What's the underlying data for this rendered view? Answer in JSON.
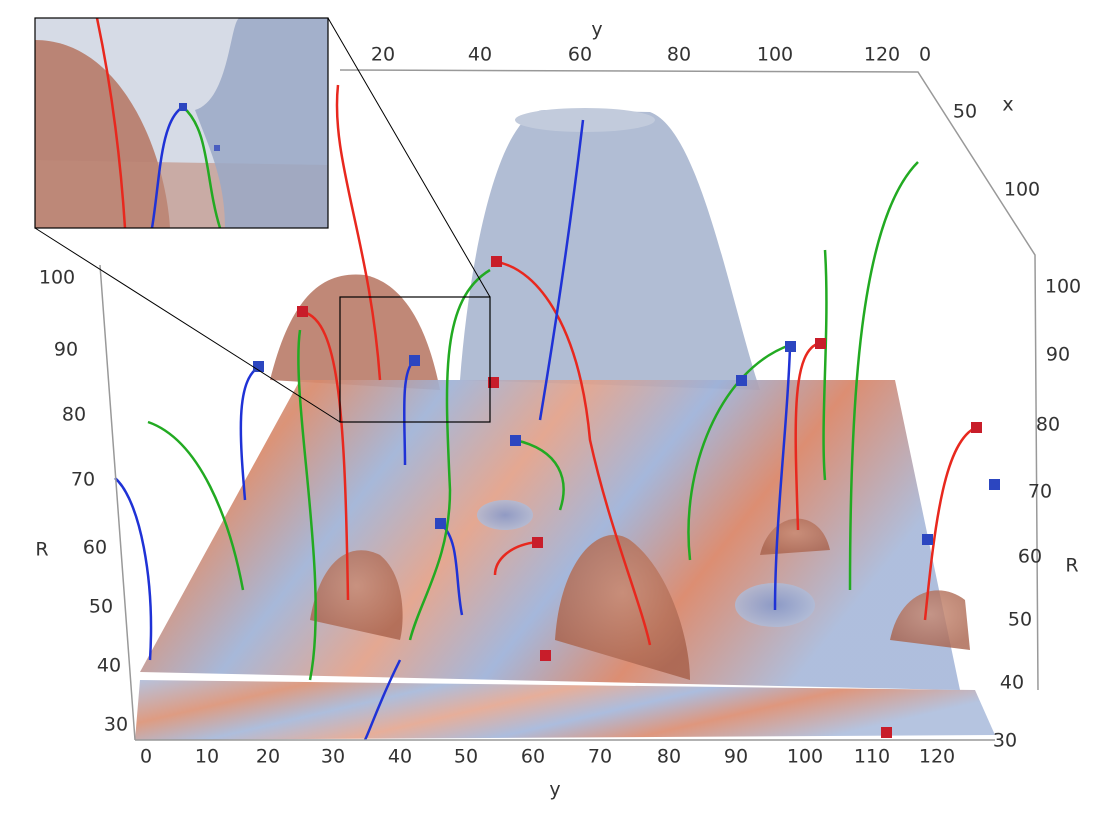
{
  "axes": {
    "top_y": {
      "label": "y",
      "ticks": [
        20,
        40,
        60,
        80,
        100,
        120,
        0
      ]
    },
    "x": {
      "label": "x",
      "ticks": [
        50,
        100
      ]
    },
    "left_R": {
      "label": "R",
      "ticks": [
        100,
        90,
        80,
        70,
        60,
        50,
        40,
        30
      ]
    },
    "right_R": {
      "label": "R",
      "ticks": [
        100,
        90,
        80,
        70,
        60,
        50,
        40,
        30
      ]
    },
    "bottom_y": {
      "label": "y",
      "ticks": [
        0,
        10,
        20,
        30,
        40,
        50,
        60,
        70,
        80,
        90,
        100,
        110,
        120
      ]
    }
  }
}
